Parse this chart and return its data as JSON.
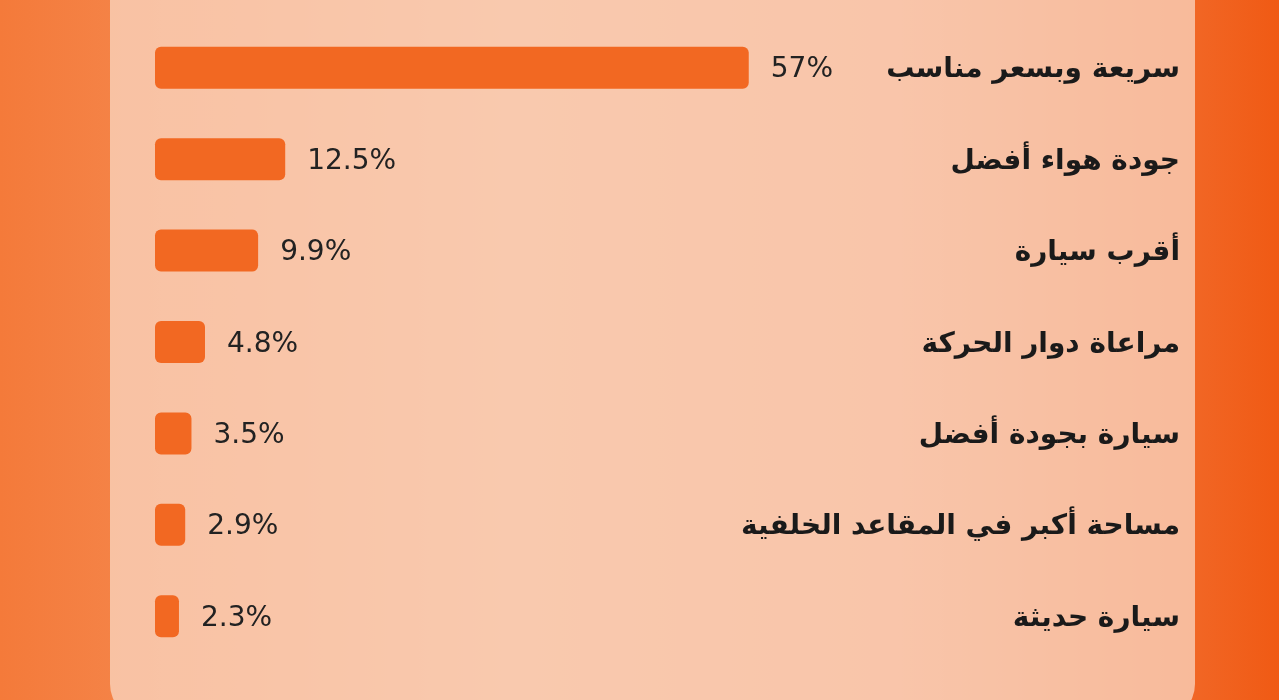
{
  "chart_data": {
    "type": "bar",
    "orientation": "horizontal",
    "color": "#f26822",
    "categories": [
      "سريعة وبسعر مناسب",
      "جودة هواء أفضل",
      "أقرب سيارة",
      "مراعاة دوار الحركة",
      "سيارة بجودة أفضل",
      "مساحة أكبر في المقاعد الخلفية",
      "سيارة حديثة"
    ],
    "values": [
      57,
      12.5,
      9.9,
      4.8,
      3.5,
      2.9,
      2.3
    ],
    "value_labels": [
      "57%",
      "12.5%",
      "9.9%",
      "4.8%",
      "3.5%",
      "2.9%",
      "2.3%"
    ]
  }
}
